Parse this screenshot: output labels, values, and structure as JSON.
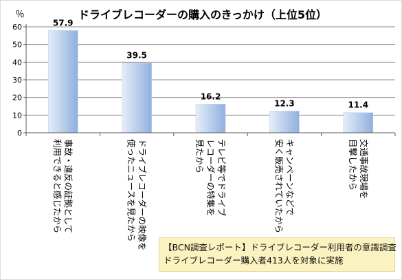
{
  "chart_data": {
    "type": "bar",
    "title": "ドライブレコーダーの購入のきっかけ（上位5位）",
    "ylabel": "％",
    "xlabel": "",
    "ylim": [
      0,
      60
    ],
    "yticks": [
      0,
      10,
      20,
      30,
      40,
      50,
      60
    ],
    "grid": true,
    "legend": "none",
    "categories": [
      [
        "事故・違反の証拠として",
        "利用できると感じたから"
      ],
      [
        "ドライブレコーダーの映像を",
        "使ったニュースを見たから"
      ],
      [
        "テレビ等でドライブ",
        "レコーダーの特集を",
        "見たから"
      ],
      [
        "キャンペーンなどで",
        "安く販売されていたから"
      ],
      [
        "交通事故現場を",
        "目撃したから"
      ]
    ],
    "values": [
      57.9,
      39.5,
      16.2,
      12.3,
      11.4
    ],
    "value_labels": [
      "57.9",
      "39.5",
      "16.2",
      "12.3",
      "11.4"
    ],
    "colors": {
      "bar_light": "#e6eefa",
      "bar_dark": "#8fb0dd",
      "grid": "#8c8c8c",
      "axis": "#595959"
    }
  },
  "note": {
    "line1": "【BCN調査レポート】ドライブレコーダー利用者の意識調査",
    "line2": "ドライブレコーダー購入者413人を対象に実施"
  }
}
